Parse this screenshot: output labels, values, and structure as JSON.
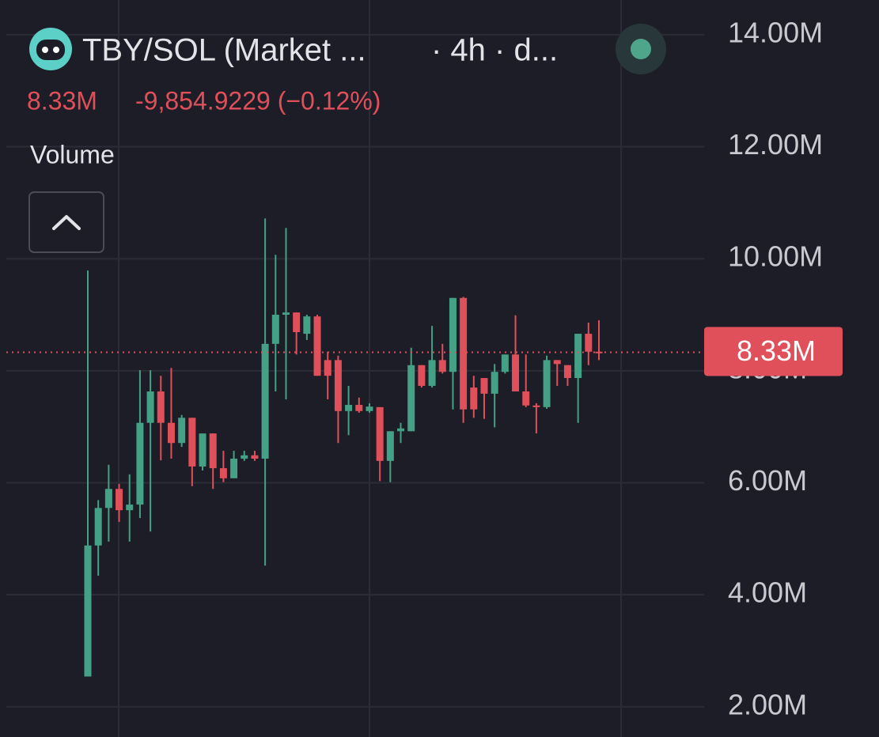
{
  "chart_data": {
    "type": "candlestick",
    "title": "TBY/SOL (Market ...",
    "interval": "· 4h · d...",
    "price": "8.33M",
    "change": "-9,854.9229 (−0.12%)",
    "indicator": "Volume",
    "up_color": "#45a185",
    "down_color": "#e0505a",
    "grid": true,
    "ylim": [
      1.46,
      14.62
    ],
    "yticks": [
      {
        "value": 2,
        "label": "2.00M"
      },
      {
        "value": 4,
        "label": "4.00M"
      },
      {
        "value": 6,
        "label": "6.00M"
      },
      {
        "value": 8,
        "label": "8.00M"
      },
      {
        "value": 10,
        "label": "10.00M"
      },
      {
        "value": 12,
        "label": "12.00M"
      },
      {
        "value": 14,
        "label": "14.00M"
      }
    ],
    "last_price": {
      "value": 8.33,
      "label": "8.33M"
    },
    "open": [
      2.54,
      4.88,
      5.55,
      5.89,
      5.51,
      5.61,
      7.07,
      7.63,
      7.07,
      6.71,
      7.16,
      6.29,
      6.88,
      6.26,
      6.08,
      6.43,
      6.49,
      6.43,
      8.48,
      9.0,
      9.04,
      8.66,
      8.97,
      8.19,
      8.19,
      7.28,
      7.39,
      7.28,
      7.35,
      6.39,
      6.92,
      6.92,
      8.1,
      7.73,
      8.19,
      7.98,
      9.3,
      7.7,
      7.87,
      7.59,
      7.98,
      8.29,
      7.63,
      7.38,
      7.35,
      8.19,
      8.1,
      7.87,
      8.66,
      8.34
    ],
    "high": [
      9.79,
      5.69,
      6.32,
      5.98,
      6.15,
      8.01,
      8.01,
      7.91,
      8.05,
      7.21,
      7.16,
      6.88,
      6.88,
      6.57,
      6.57,
      6.57,
      6.57,
      10.72,
      10.07,
      10.55,
      9.04,
      9.0,
      9.0,
      8.34,
      8.27,
      7.73,
      7.52,
      7.42,
      7.35,
      6.92,
      7.07,
      8.41,
      8.1,
      8.8,
      8.48,
      9.3,
      9.32,
      7.91,
      7.87,
      8.12,
      8.29,
      8.99,
      8.29,
      7.42,
      8.27,
      8.19,
      8.1,
      8.66,
      8.86,
      8.9
    ],
    "low": [
      2.54,
      4.34,
      4.95,
      5.3,
      4.95,
      5.37,
      5.13,
      6.4,
      6.43,
      6.64,
      5.94,
      6.22,
      5.89,
      6.01,
      6.08,
      6.39,
      6.39,
      4.52,
      7.63,
      7.49,
      8.29,
      8.55,
      7.91,
      7.49,
      6.71,
      6.85,
      7.25,
      7.25,
      6.03,
      6.01,
      6.71,
      6.92,
      7.7,
      7.7,
      7.95,
      7.31,
      7.07,
      7.16,
      7.14,
      6.99,
      7.95,
      7.63,
      7.35,
      6.88,
      7.32,
      7.73,
      7.73,
      7.07,
      8.1,
      8.19
    ],
    "close": [
      4.88,
      5.55,
      5.89,
      5.51,
      5.61,
      7.07,
      7.63,
      7.07,
      6.71,
      7.16,
      6.29,
      6.88,
      6.26,
      6.08,
      6.43,
      6.49,
      6.43,
      8.48,
      9.0,
      9.04,
      8.69,
      8.97,
      7.91,
      7.91,
      7.28,
      7.39,
      7.28,
      7.36,
      6.39,
      6.92,
      6.97,
      8.1,
      7.73,
      8.19,
      7.98,
      9.3,
      7.31,
      7.31,
      7.59,
      7.98,
      8.29,
      7.63,
      7.38,
      7.35,
      8.19,
      8.12,
      7.87,
      8.66,
      8.34,
      8.33
    ]
  }
}
